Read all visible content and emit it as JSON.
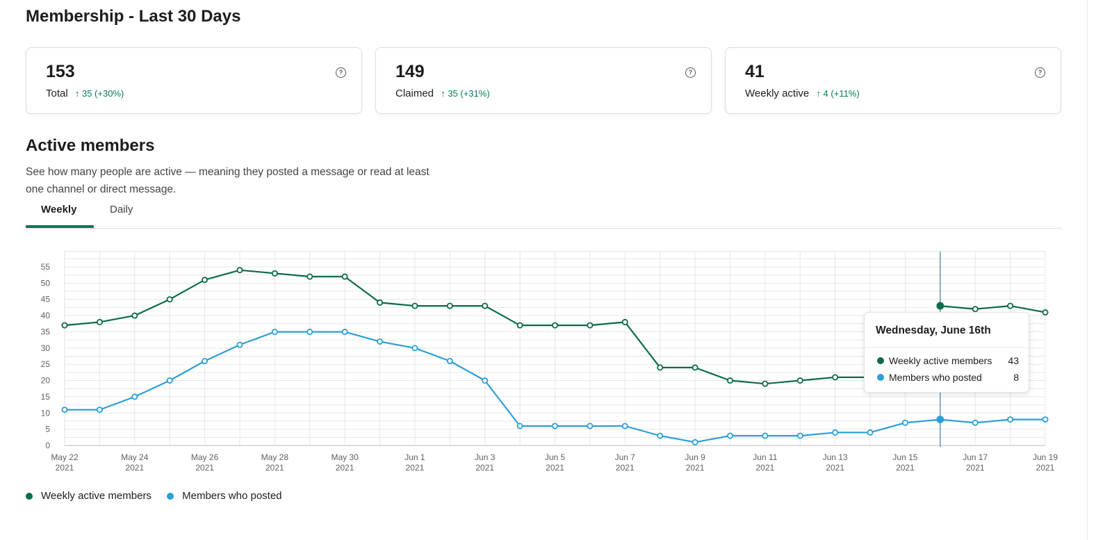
{
  "page": {
    "title": "Membership - Last 30 Days"
  },
  "stats": [
    {
      "value": "153",
      "label": "Total",
      "delta": "↑ 35 (+30%)"
    },
    {
      "value": "149",
      "label": "Claimed",
      "delta": "↑ 35 (+31%)"
    },
    {
      "value": "41",
      "label": "Weekly active",
      "delta": "↑ 4 (+11%)"
    }
  ],
  "active_members": {
    "title": "Active members",
    "description": "See how many people are active — meaning they posted a message or read at least one channel or direct message.",
    "tabs": [
      {
        "label": "Weekly",
        "selected": true
      },
      {
        "label": "Daily",
        "selected": false
      }
    ]
  },
  "colors": {
    "weekly": "#0b6b4a",
    "posted": "#2a9fd6",
    "accent": "#007a5a"
  },
  "icons": {
    "help": "question-circle-icon"
  },
  "chart_data": {
    "type": "line",
    "x": [
      "May 22 2021",
      "May 23 2021",
      "May 24 2021",
      "May 25 2021",
      "May 26 2021",
      "May 27 2021",
      "May 28 2021",
      "May 29 2021",
      "May 30 2021",
      "May 31 2021",
      "Jun 1 2021",
      "Jun 2 2021",
      "Jun 3 2021",
      "Jun 4 2021",
      "Jun 5 2021",
      "Jun 6 2021",
      "Jun 7 2021",
      "Jun 8 2021",
      "Jun 9 2021",
      "Jun 10 2021",
      "Jun 11 2021",
      "Jun 12 2021",
      "Jun 13 2021",
      "Jun 14 2021",
      "Jun 15 2021",
      "Jun 16 2021",
      "Jun 17 2021",
      "Jun 18 2021",
      "Jun 19 2021"
    ],
    "xticks": [
      {
        "month": "May 22",
        "year": "2021"
      },
      {
        "month": "May 24",
        "year": "2021"
      },
      {
        "month": "May 26",
        "year": "2021"
      },
      {
        "month": "May 28",
        "year": "2021"
      },
      {
        "month": "May 30",
        "year": "2021"
      },
      {
        "month": "Jun 1",
        "year": "2021"
      },
      {
        "month": "Jun 3",
        "year": "2021"
      },
      {
        "month": "Jun 5",
        "year": "2021"
      },
      {
        "month": "Jun 7",
        "year": "2021"
      },
      {
        "month": "Jun 9",
        "year": "2021"
      },
      {
        "month": "Jun 11",
        "year": "2021"
      },
      {
        "month": "Jun 13",
        "year": "2021"
      },
      {
        "month": "Jun 15",
        "year": "2021"
      },
      {
        "month": "Jun 17",
        "year": "2021"
      },
      {
        "month": "Jun 19",
        "year": "2021"
      }
    ],
    "yticks": [
      0,
      5,
      10,
      15,
      20,
      25,
      30,
      35,
      40,
      45,
      50,
      55
    ],
    "ylim": [
      0,
      55
    ],
    "grid": true,
    "legend_position": "bottom-left",
    "series": [
      {
        "name": "Weekly active members",
        "values": [
          37,
          38,
          40,
          45,
          51,
          54,
          53,
          52,
          52,
          44,
          43,
          43,
          43,
          37,
          37,
          37,
          38,
          24,
          24,
          20,
          19,
          20,
          21,
          21,
          null,
          43,
          42,
          43,
          41
        ]
      },
      {
        "name": "Members who posted",
        "values": [
          11,
          11,
          15,
          20,
          26,
          31,
          35,
          35,
          35,
          32,
          30,
          26,
          20,
          6,
          6,
          6,
          6,
          3,
          1,
          3,
          3,
          3,
          4,
          4,
          7,
          8,
          7,
          8,
          8
        ]
      }
    ],
    "tooltip": {
      "title": "Wednesday, June 16th",
      "x": "Jun 16 2021",
      "rows": [
        {
          "label": "Weekly active members",
          "value": "43"
        },
        {
          "label": "Members who posted",
          "value": "8"
        }
      ]
    }
  }
}
